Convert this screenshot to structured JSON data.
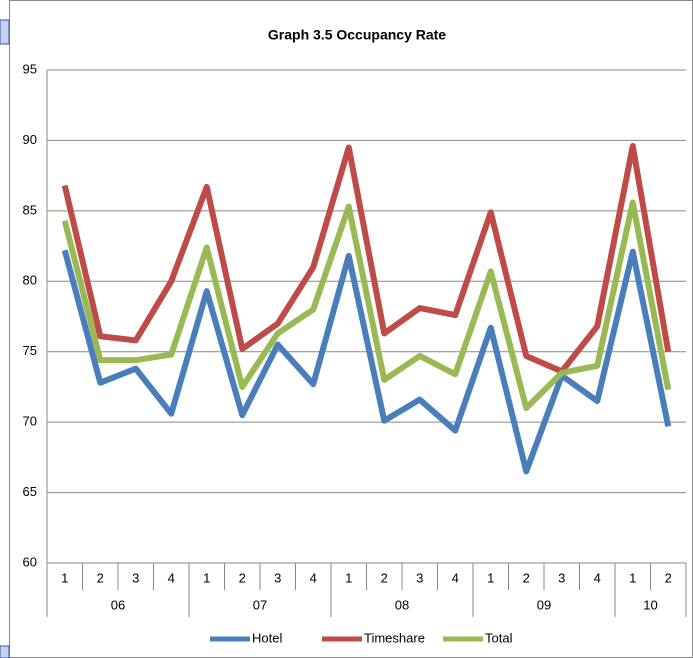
{
  "chart_data": {
    "type": "line",
    "title": "Graph 3.5 Occupancy Rate",
    "categories": [
      "1",
      "2",
      "3",
      "4",
      "1",
      "2",
      "3",
      "4",
      "1",
      "2",
      "3",
      "4",
      "1",
      "2",
      "3",
      "4",
      "1",
      "2"
    ],
    "category_groups": [
      {
        "label": "06",
        "count": 4
      },
      {
        "label": "07",
        "count": 4
      },
      {
        "label": "08",
        "count": 4
      },
      {
        "label": "09",
        "count": 4
      },
      {
        "label": "10",
        "count": 2
      }
    ],
    "series": [
      {
        "name": "Hotel",
        "color": "#4a7ebb",
        "values": [
          82.2,
          72.8,
          73.8,
          70.6,
          79.3,
          70.5,
          75.5,
          72.7,
          81.8,
          70.1,
          71.6,
          69.4,
          76.7,
          66.5,
          73.3,
          71.5,
          82.1,
          69.7
        ]
      },
      {
        "name": "Timeshare",
        "color": "#be4b48",
        "values": [
          86.8,
          76.1,
          75.8,
          80.0,
          86.7,
          75.2,
          77.0,
          81.0,
          89.5,
          76.3,
          78.1,
          77.6,
          84.9,
          74.7,
          73.6,
          76.8,
          89.6,
          75.0
        ]
      },
      {
        "name": "Total",
        "color": "#98b954",
        "values": [
          84.3,
          74.4,
          74.4,
          74.8,
          82.4,
          72.5,
          76.3,
          78.0,
          85.3,
          73.0,
          74.7,
          73.4,
          80.7,
          71.0,
          73.5,
          74.0,
          85.6,
          72.3
        ]
      }
    ],
    "ylim": [
      60,
      95
    ],
    "yticks": [
      60,
      65,
      70,
      75,
      80,
      85,
      90,
      95
    ],
    "grid": true,
    "legend": "bottom"
  }
}
